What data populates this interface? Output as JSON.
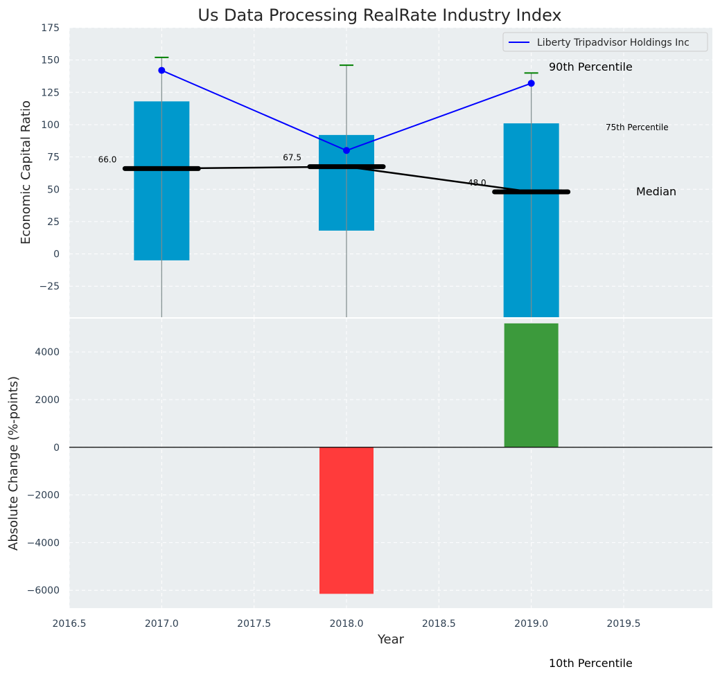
{
  "chart_data": [
    {
      "type": "box",
      "title": "Us Data Processing RealRate Industry Index",
      "xlabel": "",
      "ylabel": "Economic Capital Ratio",
      "xlim": [
        2016.5,
        2019.98
      ],
      "ylim": [
        -49,
        175
      ],
      "xticks": [
        "2016.5",
        "2017.0",
        "2017.5",
        "2018.0",
        "2018.5",
        "2019.0",
        "2019.5"
      ],
      "yticks": [
        "−25",
        "0",
        "25",
        "50",
        "75",
        "100",
        "125",
        "150",
        "175"
      ],
      "x": [
        2017,
        2018,
        2019
      ],
      "percentile_25": [
        -5,
        18,
        -49
      ],
      "percentile_75": [
        118,
        92,
        101
      ],
      "median": [
        66.0,
        67.5,
        48.0
      ],
      "median_labels": [
        "66.0",
        "67.5",
        "48.0"
      ],
      "percentile_90": [
        152,
        146,
        140
      ],
      "series": [
        {
          "name": "Liberty Tripadvisor Holdings Inc",
          "values": [
            142,
            80,
            132
          ],
          "color": "#0000ff"
        }
      ],
      "box_color": "#0099cc",
      "cap_color": "#008000",
      "annotations": [
        "90th Percentile",
        "75th Percentile",
        "Median",
        "10th Percentile"
      ],
      "legend": "top-right",
      "grid": true
    },
    {
      "type": "bar",
      "xlabel": "Year",
      "ylabel": "Absolute Change (%-points)",
      "xlim": [
        2016.5,
        2019.98
      ],
      "ylim": [
        -6750,
        5400
      ],
      "xticks": [
        "2016.5",
        "2017.0",
        "2017.5",
        "2018.0",
        "2018.5",
        "2019.0",
        "2019.5"
      ],
      "yticks": [
        "−6000",
        "−4000",
        "−2000",
        "0",
        "2000",
        "4000"
      ],
      "x": [
        2018,
        2019
      ],
      "values": [
        -6150,
        5200
      ],
      "colors": [
        "#ff3b3b",
        "#3c9a3c"
      ],
      "grid": true
    }
  ]
}
